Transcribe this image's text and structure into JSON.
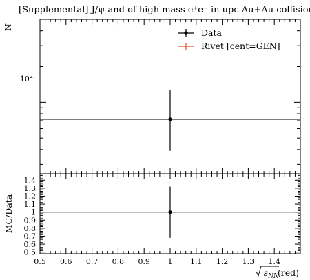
{
  "chart_data": [
    {
      "type": "scatter",
      "title": "[Supplemental] J/ψ and of high mass e⁺e⁻ in upc Au+Au collisions",
      "ylabel": "N",
      "xlabel": "",
      "log_y": true,
      "ylim": [
        25,
        500
      ],
      "xlim": [
        0.5,
        1.5
      ],
      "y_tick_labels": [
        "10²"
      ],
      "legend_position": "top-right",
      "series": [
        {
          "name": "Data",
          "color": "#000000",
          "x": [
            1.0
          ],
          "y": [
            72
          ],
          "y_err_low": [
            39
          ],
          "y_err_high": [
            126
          ],
          "x_err": [
            0.5
          ]
        },
        {
          "name": "Rivet [cent=GEN]",
          "color": "#e8502a",
          "x": [],
          "y": []
        }
      ]
    },
    {
      "type": "scatter",
      "title": "",
      "ylabel": "MC/Data",
      "xlabel": "√sNN(red)",
      "xlim": [
        0.5,
        1.5
      ],
      "ylim": [
        0.48,
        1.48
      ],
      "x_tick_labels": [
        "0.5",
        "0.6",
        "0.7",
        "0.8",
        "0.9",
        "1",
        "1.1",
        "1.2",
        "1.3",
        "1.4"
      ],
      "y_tick_labels": [
        "0.5",
        "0.6",
        "0.7",
        "0.8",
        "0.9",
        "1",
        "1.1",
        "1.2",
        "1.3",
        "1.4"
      ],
      "series": [
        {
          "name": "Data",
          "color": "#000000",
          "x": [
            1.0
          ],
          "y": [
            1.0
          ],
          "y_err_low": [
            0.68
          ],
          "y_err_high": [
            1.32
          ],
          "x_err": [
            0.5
          ]
        }
      ]
    }
  ]
}
